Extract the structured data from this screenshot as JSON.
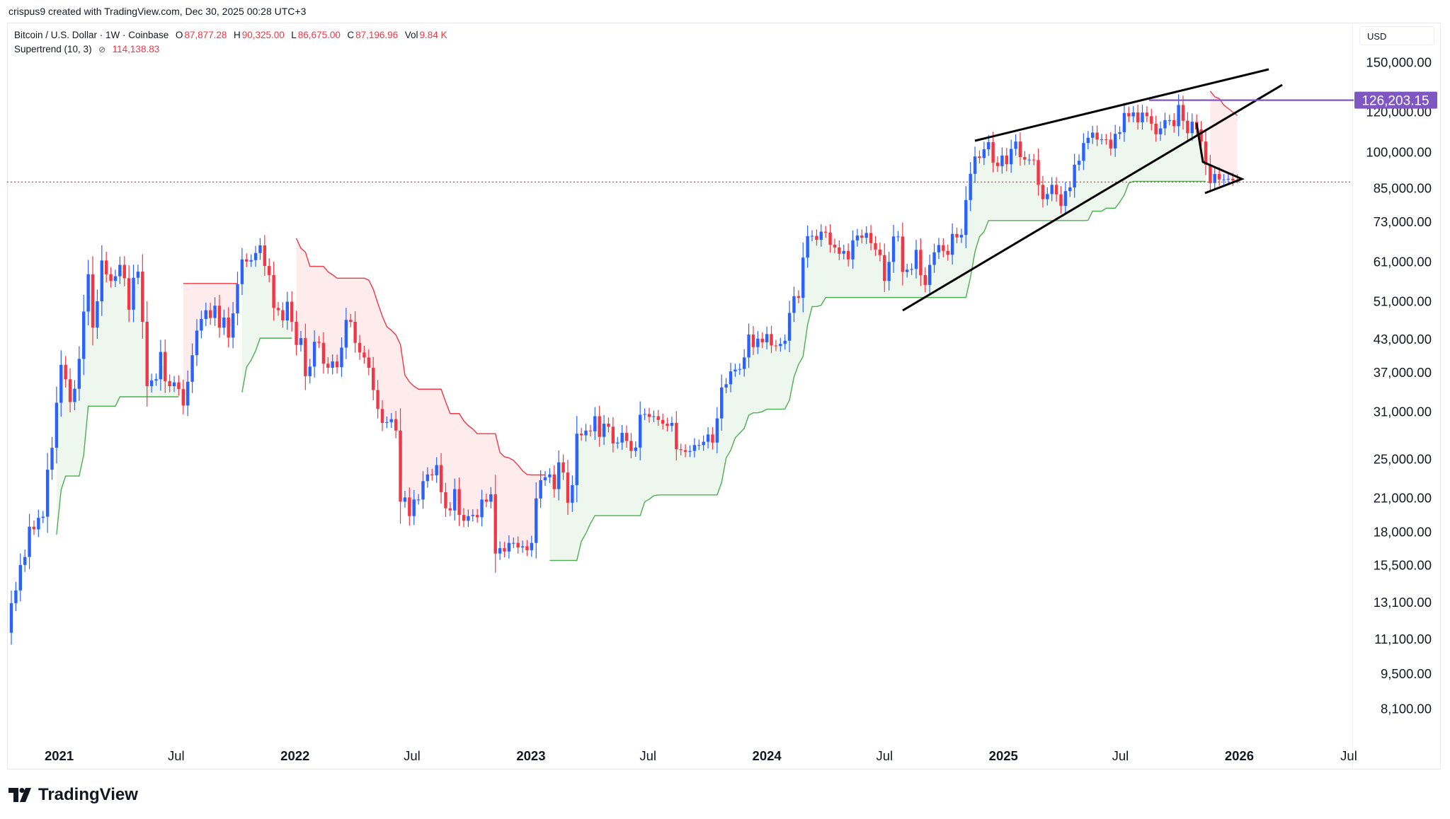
{
  "attribution": "crispus9 created with TradingView.com, Dec 30, 2025 00:28 UTC+3",
  "legend": {
    "symbol": "Bitcoin / U.S. Dollar · 1W · Coinbase",
    "o_label": "O",
    "o": "87,877.28",
    "h_label": "H",
    "h": "90,325.00",
    "l_label": "L",
    "l": "86,675.00",
    "c_label": "C",
    "c": "87,196.96",
    "vol_label": "Vol",
    "vol": "9.84 K",
    "indicator": "Supertrend (10, 3)",
    "indicator_icon": "eye-slash-icon",
    "indicator_value": "114,138.83"
  },
  "currency": "USD",
  "logo_text": "TradingView",
  "colors": {
    "up": "#2962ff",
    "down": "#f23645",
    "st_up": "#4caf50",
    "st_down": "#f23645",
    "level": "#7e57c2"
  },
  "chart_data": {
    "type": "candlestick",
    "title": "Bitcoin / U.S. Dollar · 1W · Coinbase",
    "scale": "log",
    "start_week": "2020-10-19",
    "ylim": [
      6800,
      175000
    ],
    "y_ticks": [
      "150,000.00",
      "120,000.00",
      "100,000.00",
      "85,000.00",
      "73,000.00",
      "61,000.00",
      "51,000.00",
      "43,000.00",
      "37,000.00",
      "31,000.00",
      "25,000.00",
      "21,000.00",
      "18,000.00",
      "15,500.00",
      "13,100.00",
      "11,100.00",
      "9,500.00",
      "8,100.00"
    ],
    "x_ticks": [
      {
        "label": "2021",
        "date": "2021-01-01",
        "major": true
      },
      {
        "label": "Jul",
        "date": "2021-07-01",
        "major": false
      },
      {
        "label": "2022",
        "date": "2022-01-01",
        "major": true
      },
      {
        "label": "Jul",
        "date": "2022-07-01",
        "major": false
      },
      {
        "label": "2023",
        "date": "2023-01-01",
        "major": true
      },
      {
        "label": "Jul",
        "date": "2023-07-01",
        "major": false
      },
      {
        "label": "2024",
        "date": "2024-01-01",
        "major": true
      },
      {
        "label": "Jul",
        "date": "2024-07-01",
        "major": false
      },
      {
        "label": "2025",
        "date": "2025-01-01",
        "major": true
      },
      {
        "label": "Jul",
        "date": "2025-07-01",
        "major": false
      },
      {
        "label": "2026",
        "date": "2026-01-01",
        "major": true
      },
      {
        "label": "Jul",
        "date": "2026-07-01",
        "major": false
      }
    ],
    "first_open": 11400,
    "weekly_close": [
      13030,
      13800,
      15480,
      16050,
      18400,
      18180,
      19150,
      19250,
      23800,
      26270,
      32200,
      38200,
      35800,
      32300,
      34300,
      39250,
      48600,
      57500,
      45200,
      50900,
      61200,
      57500,
      55800,
      57000,
      60000,
      56500,
      49000,
      56600,
      58200,
      46400,
      34700,
      35600,
      35800,
      40500,
      35500,
      34700,
      35300,
      34250,
      31800,
      35400,
      39900,
      44600,
      47000,
      48900,
      47200,
      49900,
      45200,
      47300,
      43200,
      48200,
      55000,
      61500,
      60900,
      61300,
      63300,
      65500,
      59700,
      57300,
      49400,
      48900,
      46700,
      50800,
      46400,
      41800,
      43100,
      36300,
      37900,
      42400,
      42200,
      38400,
      37700,
      38800,
      37800,
      41300,
      46800,
      46400,
      42200,
      40400,
      39500,
      37700,
      34100,
      31300,
      29400,
      29500,
      29900,
      28400,
      20600,
      21000,
      19300,
      20800,
      20800,
      22600,
      23300,
      23200,
      24300,
      21500,
      20000,
      19800,
      21800,
      19400,
      18900,
      19300,
      19400,
      19200,
      20800,
      20600,
      21300,
      16300,
      16700,
      16450,
      17100,
      17100,
      16750,
      16840,
      16550,
      17100,
      20900,
      22700,
      23000,
      23300,
      21800,
      24600,
      23500,
      20500,
      22200,
      28000,
      27800,
      28400,
      28300,
      30300,
      27600,
      29300,
      28900,
      26800,
      26900,
      28100,
      27100,
      25900,
      26300,
      30500,
      30600,
      30200,
      30300,
      29800,
      29300,
      29000,
      29400,
      26100,
      26000,
      25800,
      25900,
      26600,
      26600,
      27000,
      27900,
      26900,
      30000,
      34500,
      35000,
      37100,
      37400,
      37500,
      39500,
      43800,
      41400,
      43000,
      42300,
      43900,
      41700,
      41600,
      42000,
      42600,
      48300,
      52100,
      51700,
      62000,
      68300,
      68400,
      67200,
      69700,
      69400,
      65700,
      64900,
      63100,
      63900,
      61500,
      67000,
      68500,
      67800,
      69300,
      66200,
      64300,
      62700,
      55800,
      60800,
      68200,
      68200,
      58100,
      58700,
      58900,
      64200,
      57300,
      54800,
      60000,
      63500,
      65600,
      63900,
      62800,
      69000,
      67900,
      68700,
      80400,
      90500,
      97900,
      97200,
      101100,
      104400,
      95200,
      93700,
      98300,
      94500,
      101300,
      104700,
      97600,
      96500,
      96500,
      96300,
      86100,
      80700,
      82600,
      86100,
      82500,
      78300,
      83700,
      85100,
      94300,
      96000,
      104000,
      106500,
      109000,
      105700,
      105700,
      105600,
      101500,
      108400,
      109200,
      119100,
      117300,
      119400,
      114200,
      119300,
      117400,
      113500,
      108200,
      111100,
      115300,
      115300,
      112200,
      123500,
      115000,
      108700,
      114500,
      110600,
      104700,
      94300,
      86800,
      90400,
      88200,
      88200,
      88500,
      87800,
      87196.96
    ],
    "supertrend": {
      "period": 10,
      "multiplier": 3,
      "value": 114138.83
    },
    "horizontal_level": {
      "price": 126203.15,
      "label": "126,203.15"
    },
    "last_price": 87196.96
  }
}
